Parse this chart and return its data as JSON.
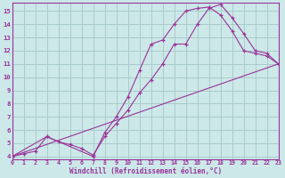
{
  "xlabel": "Windchill (Refroidissement éolien,°C)",
  "bg_color": "#cce8e8",
  "grid_color": "#aacccc",
  "line_color": "#993399",
  "xlim": [
    0,
    23
  ],
  "ylim": [
    3.8,
    15.6
  ],
  "xticks": [
    0,
    1,
    2,
    3,
    4,
    5,
    6,
    7,
    8,
    9,
    10,
    11,
    12,
    13,
    14,
    15,
    16,
    17,
    18,
    19,
    20,
    21,
    22,
    23
  ],
  "yticks": [
    4,
    5,
    6,
    7,
    8,
    9,
    10,
    11,
    12,
    13,
    14,
    15
  ],
  "series1_x": [
    0,
    1,
    2,
    3,
    4,
    5,
    6,
    7,
    8,
    9,
    10,
    11,
    12,
    13,
    14,
    15,
    16,
    17,
    18,
    19,
    20,
    21,
    22,
    23
  ],
  "series1_y": [
    4.0,
    4.2,
    4.4,
    5.5,
    5.1,
    4.9,
    4.6,
    4.1,
    5.5,
    6.5,
    7.5,
    8.8,
    9.8,
    11.0,
    12.5,
    12.5,
    14.0,
    15.2,
    15.5,
    14.5,
    13.3,
    12.0,
    11.8,
    11.0
  ],
  "series2_x": [
    0,
    3,
    7,
    8,
    9,
    10,
    11,
    12,
    13,
    14,
    15,
    16,
    17,
    18,
    19,
    20,
    21,
    22,
    23
  ],
  "series2_y": [
    4.0,
    5.5,
    4.0,
    5.8,
    7.0,
    8.5,
    10.5,
    12.5,
    12.8,
    14.0,
    15.0,
    15.2,
    15.3,
    14.7,
    13.5,
    12.0,
    11.8,
    11.6,
    11.0
  ],
  "series3_x": [
    0,
    23
  ],
  "series3_y": [
    4.0,
    11.0
  ]
}
